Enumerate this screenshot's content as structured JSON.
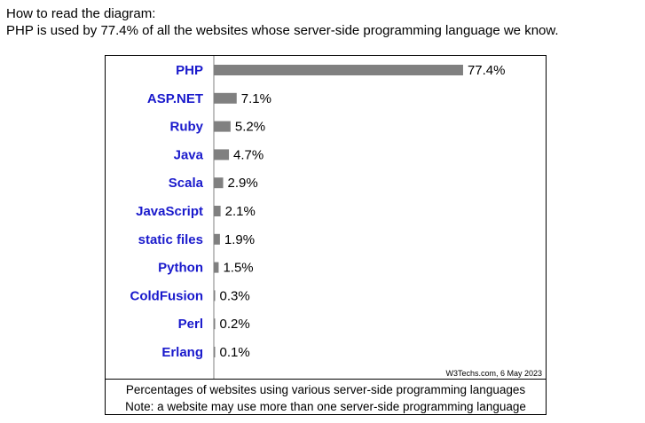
{
  "intro": {
    "line1": "How to read the diagram:",
    "line2": "PHP is used by 77.4% of all the websites whose server-side programming language we know."
  },
  "source": "W3Techs.com, 6 May 2023",
  "caption": {
    "line1": "Percentages of websites using various server-side programming languages",
    "line2": "Note: a website may use more than one server-side programming language"
  },
  "colors": {
    "bar": "#808080",
    "category_label": "#1a1acc",
    "axis": "#808080"
  },
  "chart_data": {
    "type": "bar",
    "orientation": "horizontal",
    "categories": [
      "PHP",
      "ASP.NET",
      "Ruby",
      "Java",
      "Scala",
      "JavaScript",
      "static files",
      "Python",
      "ColdFusion",
      "Perl",
      "Erlang"
    ],
    "values": [
      77.4,
      7.1,
      5.2,
      4.7,
      2.9,
      2.1,
      1.9,
      1.5,
      0.3,
      0.2,
      0.1
    ],
    "value_labels": [
      "77.4%",
      "7.1%",
      "5.2%",
      "4.7%",
      "2.9%",
      "2.1%",
      "1.9%",
      "1.5%",
      "0.3%",
      "0.2%",
      "0.1%"
    ],
    "xlim": [
      0,
      100
    ],
    "grid": false,
    "legend": "none"
  }
}
